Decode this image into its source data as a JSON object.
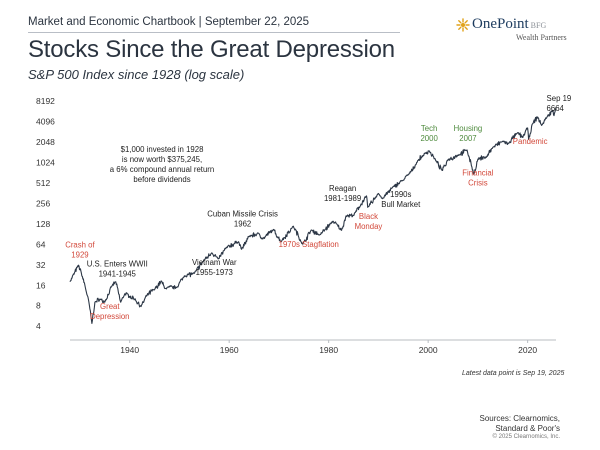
{
  "header": {
    "overline": "Market and Economic Chartbook | September 22, 2025",
    "title": "Stocks Since the Great Depression",
    "subtitle": "S&P 500 Index since 1928 (log scale)"
  },
  "logo": {
    "name": "OnePoint",
    "suffix": "BFG",
    "tagline": "Wealth Partners"
  },
  "colors": {
    "line": "#2c3746",
    "red": "#d2483a",
    "green": "#4d8a3c",
    "text": "#222222",
    "axis": "#b8bcc2"
  },
  "chart_data": {
    "type": "line",
    "scale": "log",
    "xlim": [
      1928,
      2025.7
    ],
    "ylim": [
      3.4,
      8192
    ],
    "yticks": [
      4,
      8,
      16,
      32,
      64,
      128,
      256,
      512,
      1024,
      2048,
      4096,
      8192
    ],
    "xticks": [
      1940,
      1960,
      1980,
      2000,
      2020
    ],
    "series": [
      {
        "values": [
          [
            1928,
            18
          ],
          [
            1929.7,
            31.5
          ],
          [
            1930.3,
            24
          ],
          [
            1931,
            16
          ],
          [
            1931.8,
            9
          ],
          [
            1932.4,
            4.4
          ],
          [
            1933,
            9
          ],
          [
            1934,
            10
          ],
          [
            1935,
            9
          ],
          [
            1936.5,
            16
          ],
          [
            1937.2,
            18
          ],
          [
            1938.2,
            9
          ],
          [
            1939,
            12
          ],
          [
            1940,
            11
          ],
          [
            1941,
            10
          ],
          [
            1942.3,
            7.8
          ],
          [
            1943.5,
            11.5
          ],
          [
            1945,
            14
          ],
          [
            1946.4,
            18.5
          ],
          [
            1947,
            14.5
          ],
          [
            1949.5,
            15
          ],
          [
            1951,
            22
          ],
          [
            1953,
            24
          ],
          [
            1955,
            38
          ],
          [
            1956.5,
            48
          ],
          [
            1957.8,
            39
          ],
          [
            1959.5,
            58
          ],
          [
            1961.9,
            70
          ],
          [
            1962.5,
            54
          ],
          [
            1964,
            84
          ],
          [
            1966,
            92
          ],
          [
            1966.8,
            77
          ],
          [
            1968.9,
            106
          ],
          [
            1970.4,
            70
          ],
          [
            1972.9,
            118
          ],
          [
            1974.8,
            64
          ],
          [
            1976.5,
            104
          ],
          [
            1978.2,
            88
          ],
          [
            1980.9,
            140
          ],
          [
            1982.6,
            103
          ],
          [
            1983.5,
            168
          ],
          [
            1985,
            170
          ],
          [
            1987.6,
            330
          ],
          [
            1987.85,
            224
          ],
          [
            1990,
            358
          ],
          [
            1990.8,
            300
          ],
          [
            1993,
            450
          ],
          [
            1995,
            560
          ],
          [
            1996.5,
            740
          ],
          [
            1998,
            1100
          ],
          [
            1999,
            1300
          ],
          [
            2000.2,
            1520
          ],
          [
            2001.5,
            1100
          ],
          [
            2002.8,
            780
          ],
          [
            2004,
            1130
          ],
          [
            2006,
            1300
          ],
          [
            2007.8,
            1565
          ],
          [
            2008.8,
            880
          ],
          [
            2009.2,
            680
          ],
          [
            2010,
            1150
          ],
          [
            2011.5,
            1200
          ],
          [
            2013,
            1700
          ],
          [
            2015,
            2100
          ],
          [
            2016,
            1900
          ],
          [
            2018,
            2800
          ],
          [
            2018.95,
            2400
          ],
          [
            2020,
            3300
          ],
          [
            2020.2,
            2240
          ],
          [
            2021,
            3800
          ],
          [
            2022,
            4770
          ],
          [
            2022.8,
            3580
          ],
          [
            2024,
            4900
          ],
          [
            2025,
            5900
          ],
          [
            2025.3,
            5000
          ],
          [
            2025.72,
            6664
          ]
        ]
      }
    ],
    "annotations": [
      {
        "text": "$1,000 invested in 1928\nis now worth $375,245,\na 6% compound annual return\nbefore dividends",
        "x": 1946.5,
        "y": 1450,
        "color": "text",
        "anchor": "middle"
      },
      {
        "text": "Crash of\n1929",
        "x": 1930,
        "y": 57,
        "color": "red",
        "anchor": "middle"
      },
      {
        "text": "Great\nDepression",
        "x": 1936,
        "y": 7.2,
        "color": "red",
        "anchor": "middle"
      },
      {
        "text": "U.S. Enters WWII\n1941-1945",
        "x": 1937.5,
        "y": 30,
        "color": "text",
        "anchor": "middle"
      },
      {
        "text": "Cuban Missile Crisis\n1962",
        "x": 1962.7,
        "y": 165,
        "color": "text",
        "anchor": "middle"
      },
      {
        "text": "Vietnam War\n1955-1973",
        "x": 1957,
        "y": 32,
        "color": "text",
        "anchor": "middle"
      },
      {
        "text": "1970s Stagflation",
        "x": 1976,
        "y": 58,
        "color": "red",
        "anchor": "middle"
      },
      {
        "text": "Reagan\n1981-1989",
        "x": 1982.8,
        "y": 390,
        "color": "text",
        "anchor": "middle"
      },
      {
        "text": "Black\nMonday",
        "x": 1988,
        "y": 150,
        "color": "red",
        "anchor": "middle"
      },
      {
        "text": "1990s\nBull Market",
        "x": 1994.5,
        "y": 320,
        "color": "text",
        "anchor": "middle"
      },
      {
        "text": "Tech\n2000",
        "x": 2000.2,
        "y": 2950,
        "color": "green",
        "anchor": "middle"
      },
      {
        "text": "Housing\n2007",
        "x": 2008,
        "y": 2950,
        "color": "green",
        "anchor": "middle"
      },
      {
        "text": "Financial\nCrisis",
        "x": 2010,
        "y": 660,
        "color": "red",
        "anchor": "middle"
      },
      {
        "text": "Pandemic",
        "x": 2020.5,
        "y": 1920,
        "color": "red",
        "anchor": "middle"
      },
      {
        "text": "Sep 19\n6664",
        "x": 2023.8,
        "y": 8192,
        "color": "text",
        "anchor": "start"
      }
    ]
  },
  "footnote": "Latest data point is Sep 19, 2025",
  "sources": [
    "Sources: Clearnomics,",
    "Standard & Poor's"
  ],
  "copyright": "© 2025 Clearnomics, Inc."
}
